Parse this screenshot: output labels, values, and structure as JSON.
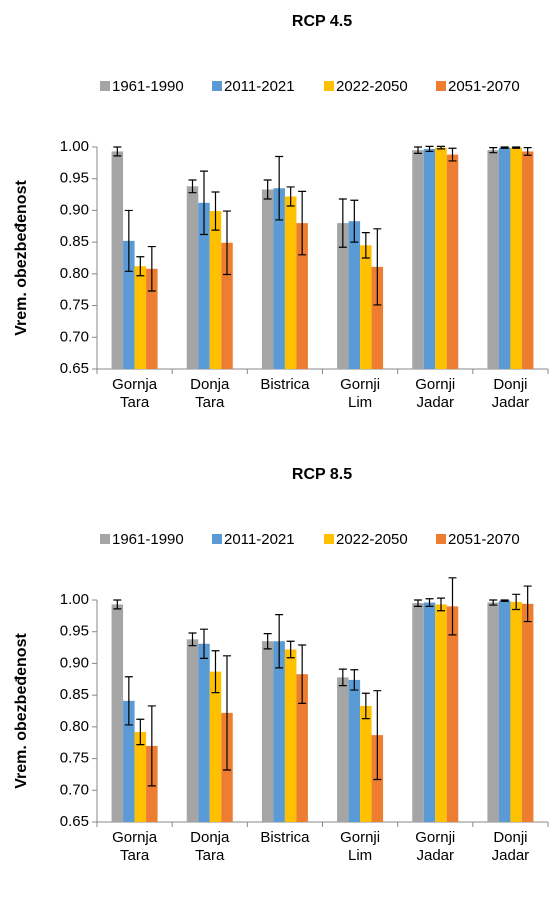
{
  "chart_data": [
    {
      "type": "bar",
      "title": "RCP 4.5",
      "ylabel": "Vrem. obezbeđenost",
      "categories": [
        [
          "Gornja",
          "Tara"
        ],
        [
          "Donja",
          "Tara"
        ],
        [
          "Bistrica"
        ],
        [
          "Gornji",
          "Lim"
        ],
        [
          "Gornji",
          "Jadar"
        ],
        [
          "Donji",
          "Jadar"
        ]
      ],
      "ylim": [
        0.65,
        1.0
      ],
      "yticks": [
        {
          "value": 0.65,
          "label": "0.65"
        },
        {
          "value": 0.7,
          "label": "0.70"
        },
        {
          "value": 0.75,
          "label": "0.75"
        },
        {
          "value": 0.8,
          "label": "0.80"
        },
        {
          "value": 0.85,
          "label": "0.85"
        },
        {
          "value": 0.9,
          "label": "0.90"
        },
        {
          "value": 0.95,
          "label": "0.95"
        },
        {
          "value": 1.0,
          "label": "1.00"
        }
      ],
      "legend": "top",
      "series": [
        {
          "name": "1961-1990",
          "color": "#a5a5a5",
          "values": [
            0.993,
            0.938,
            0.933,
            0.88,
            0.995,
            0.995
          ],
          "errors": [
            0.007,
            0.01,
            0.015,
            0.038,
            0.005,
            0.004
          ]
        },
        {
          "name": "2011-2021",
          "color": "#5b9bd5",
          "values": [
            0.852,
            0.912,
            0.935,
            0.883,
            0.997,
            0.999
          ],
          "errors": [
            0.048,
            0.05,
            0.05,
            0.033,
            0.004,
            0.001
          ]
        },
        {
          "name": "2022-2050",
          "color": "#ffc000",
          "values": [
            0.812,
            0.899,
            0.922,
            0.845,
            0.999,
            0.999
          ],
          "errors": [
            0.015,
            0.03,
            0.015,
            0.02,
            0.002,
            0.001
          ]
        },
        {
          "name": "2051-2070",
          "color": "#ed7d31",
          "values": [
            0.808,
            0.849,
            0.88,
            0.811,
            0.988,
            0.993
          ],
          "errors": [
            0.035,
            0.05,
            0.05,
            0.06,
            0.01,
            0.006
          ]
        }
      ]
    },
    {
      "type": "bar",
      "title": "RCP 8.5",
      "ylabel": "Vrem. obezbeđenost",
      "categories": [
        [
          "Gornja",
          "Tara"
        ],
        [
          "Donja",
          "Tara"
        ],
        [
          "Bistrica"
        ],
        [
          "Gornji",
          "Lim"
        ],
        [
          "Gornji",
          "Jadar"
        ],
        [
          "Donji",
          "Jadar"
        ]
      ],
      "ylim": [
        0.65,
        1.0
      ],
      "yticks": [
        {
          "value": 0.65,
          "label": "0.65"
        },
        {
          "value": 0.7,
          "label": "0.70"
        },
        {
          "value": 0.75,
          "label": "0.75"
        },
        {
          "value": 0.8,
          "label": "0.80"
        },
        {
          "value": 0.85,
          "label": "0.85"
        },
        {
          "value": 0.9,
          "label": "0.90"
        },
        {
          "value": 0.95,
          "label": "0.95"
        },
        {
          "value": 1.0,
          "label": "1.00"
        }
      ],
      "legend": "top",
      "series": [
        {
          "name": "1961-1990",
          "color": "#a5a5a5",
          "values": [
            0.993,
            0.938,
            0.935,
            0.878,
            0.995,
            0.996
          ],
          "errors": [
            0.007,
            0.01,
            0.012,
            0.013,
            0.005,
            0.004
          ]
        },
        {
          "name": "2011-2021",
          "color": "#5b9bd5",
          "values": [
            0.841,
            0.931,
            0.935,
            0.874,
            0.996,
            0.999
          ],
          "errors": [
            0.038,
            0.023,
            0.042,
            0.016,
            0.006,
            0.001
          ]
        },
        {
          "name": "2022-2050",
          "color": "#ffc000",
          "values": [
            0.792,
            0.887,
            0.922,
            0.833,
            0.993,
            0.997
          ],
          "errors": [
            0.02,
            0.033,
            0.013,
            0.02,
            0.01,
            0.012
          ]
        },
        {
          "name": "2051-2070",
          "color": "#ed7d31",
          "values": [
            0.77,
            0.822,
            0.883,
            0.787,
            0.99,
            0.994
          ],
          "errors": [
            0.063,
            0.09,
            0.046,
            0.07,
            0.045,
            0.028
          ]
        }
      ]
    }
  ]
}
